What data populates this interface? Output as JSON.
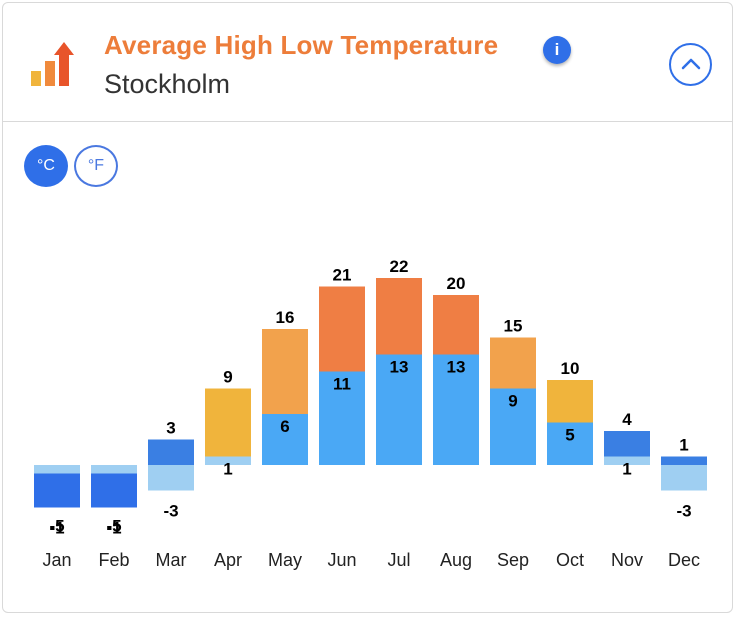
{
  "header": {
    "title": "Average High Low Temperature",
    "location": "Stockholm",
    "info_symbol": "i"
  },
  "units": {
    "celsius": "°C",
    "fahrenheit": "°F"
  },
  "colors": {
    "accent": "#2f6fe8",
    "title": "#ed7d3a"
  },
  "chart_data": {
    "type": "bar",
    "title": "Average High Low Temperature",
    "categories": [
      "Jan",
      "Feb",
      "Mar",
      "Apr",
      "May",
      "Jun",
      "Jul",
      "Aug",
      "Sep",
      "Oct",
      "Nov",
      "Dec"
    ],
    "series": [
      {
        "name": "High",
        "values": [
          -1,
          -1,
          3,
          9,
          16,
          21,
          22,
          20,
          15,
          10,
          4,
          1
        ]
      },
      {
        "name": "Low",
        "values": [
          -5,
          -5,
          -3,
          1,
          6,
          11,
          13,
          13,
          9,
          5,
          1,
          -3
        ]
      }
    ],
    "unit": "°C",
    "ylim": [
      -6,
      24
    ]
  }
}
